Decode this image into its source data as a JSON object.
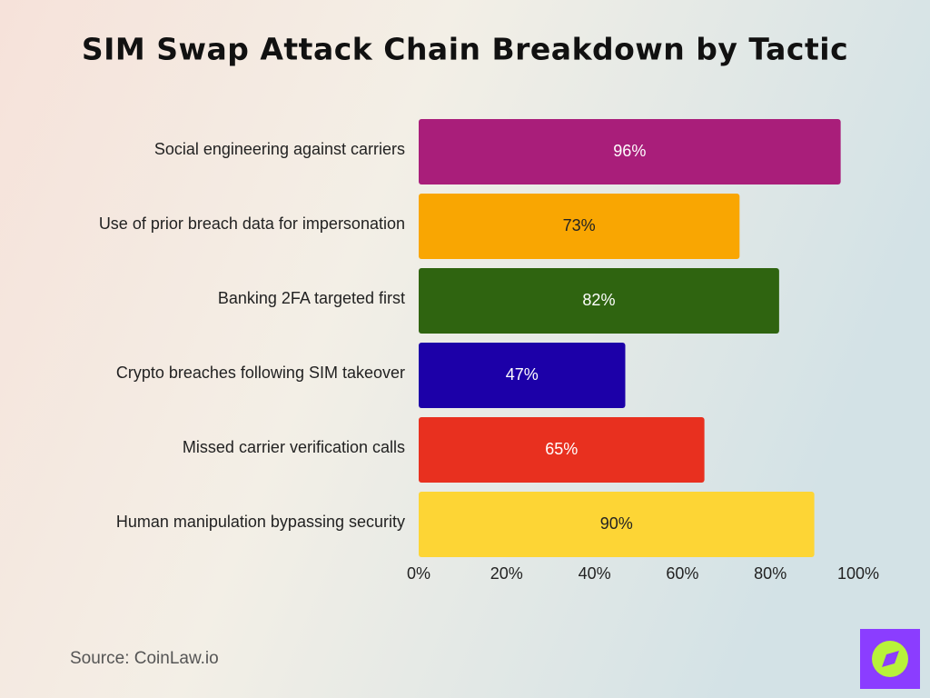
{
  "chart_data": {
    "type": "hbar",
    "title": "SIM Swap Attack Chain Breakdown by Tactic",
    "categories": [
      "Social engineering against carriers",
      "Use of prior breach data for impersonation",
      "Banking 2FA targeted first",
      "Crypto breaches following SIM takeover",
      "Missed carrier verification calls",
      "Human manipulation bypassing security"
    ],
    "values": [
      96,
      73,
      82,
      47,
      65,
      90
    ],
    "value_labels": [
      "96%",
      "73%",
      "82%",
      "47%",
      "65%",
      "90%"
    ],
    "colors": [
      "#a91e7a",
      "#f9a602",
      "#2f6410",
      "#1c00a8",
      "#e8301f",
      "#fdd535"
    ],
    "xlim": [
      0,
      100
    ],
    "xticks": [
      {
        "value": 0,
        "label": "0%"
      },
      {
        "value": 20,
        "label": "20%"
      },
      {
        "value": 40,
        "label": "40%"
      },
      {
        "value": 60,
        "label": "60%"
      },
      {
        "value": 80,
        "label": "80%"
      },
      {
        "value": 100,
        "label": "100%"
      }
    ],
    "source": "Source: CoinLaw.io"
  }
}
